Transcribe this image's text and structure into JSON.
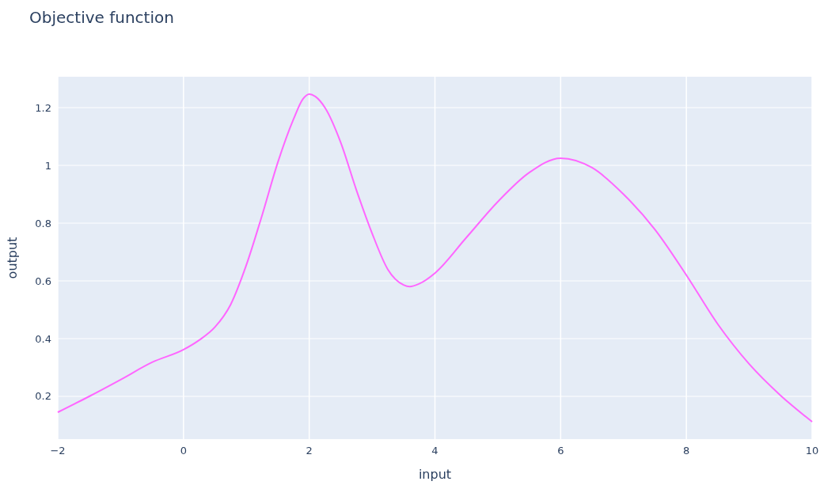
{
  "chart_data": {
    "type": "line",
    "title": "Objective function",
    "xlabel": "input",
    "ylabel": "output",
    "x": [
      -2,
      -1.5,
      -1,
      -0.5,
      0,
      0.25,
      0.5,
      0.75,
      1,
      1.25,
      1.5,
      1.75,
      1.9,
      2,
      2.1,
      2.25,
      2.5,
      2.75,
      3,
      3.25,
      3.5,
      3.6,
      3.75,
      4,
      4.5,
      5,
      5.5,
      6,
      6.5,
      7,
      7.5,
      8,
      8.5,
      9,
      9.5,
      10
    ],
    "series": [
      {
        "color": "#ff66ff",
        "values": [
          0.145,
          0.2,
          0.258,
          0.318,
          0.362,
          0.395,
          0.44,
          0.518,
          0.655,
          0.827,
          1.01,
          1.16,
          1.23,
          1.247,
          1.238,
          1.2,
          1.08,
          0.915,
          0.765,
          0.64,
          0.586,
          0.58,
          0.59,
          0.627,
          0.75,
          0.874,
          0.975,
          1.025,
          0.992,
          0.9,
          0.778,
          0.62,
          0.45,
          0.312,
          0.203,
          0.112
        ]
      }
    ],
    "xlim": [
      -2,
      10
    ],
    "xticks": [
      {
        "value": -2,
        "label": "−2"
      },
      0,
      2,
      4,
      6,
      8,
      10
    ],
    "ylim": [
      0.052,
      1.307
    ],
    "yticks": [
      0.2,
      0.4,
      0.6,
      0.8,
      1,
      1.2
    ],
    "grid": true
  }
}
